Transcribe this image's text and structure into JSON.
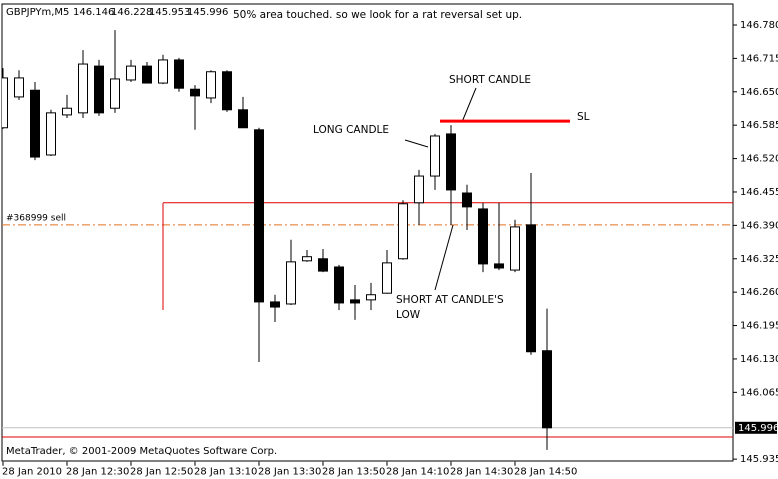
{
  "chart_data": {
    "type": "candlestick",
    "symbol": "GBPJPYm,M5",
    "categories": [
      "28 Jan 2010",
      null,
      null,
      null,
      "28 Jan 12:30",
      null,
      null,
      null,
      "28 Jan 12:50",
      null,
      null,
      null,
      "28 Jan 13:10",
      null,
      null,
      null,
      "28 Jan 13:30",
      null,
      null,
      null,
      "28 Jan 13:50",
      null,
      null,
      null,
      "28 Jan 14:10",
      null,
      null,
      null,
      "28 Jan 14:30",
      null,
      null,
      null,
      "28 Jan 14:50",
      null,
      null
    ],
    "open": [
      146.58,
      146.64,
      146.653,
      146.527,
      146.605,
      146.609,
      146.7,
      146.618,
      146.673,
      146.7,
      146.667,
      146.712,
      146.655,
      146.638,
      146.689,
      146.615,
      146.576,
      146.241,
      146.237,
      146.321,
      146.325,
      146.309,
      146.245,
      146.245,
      146.258,
      146.325,
      146.434,
      146.486,
      146.568,
      146.453,
      146.422,
      146.315,
      146.303,
      146.391,
      146.146
    ],
    "high": [
      146.696,
      146.692,
      146.669,
      146.615,
      146.644,
      146.731,
      146.712,
      146.77,
      146.712,
      146.708,
      146.722,
      146.716,
      146.663,
      146.692,
      146.692,
      146.64,
      146.58,
      146.255,
      146.362,
      146.342,
      146.344,
      146.313,
      146.274,
      146.278,
      146.342,
      146.439,
      146.498,
      146.568,
      146.585,
      146.469,
      146.434,
      146.434,
      146.401,
      146.492,
      146.228
    ],
    "low": [
      146.578,
      146.634,
      146.517,
      146.525,
      146.599,
      146.599,
      146.603,
      146.609,
      146.669,
      146.667,
      146.665,
      146.65,
      146.576,
      146.628,
      146.611,
      146.58,
      146.124,
      146.202,
      146.235,
      146.319,
      146.299,
      146.225,
      146.206,
      146.225,
      146.257,
      146.323,
      146.391,
      146.459,
      146.391,
      146.381,
      146.299,
      146.303,
      146.299,
      146.138,
      145.953
    ],
    "close": [
      146.677,
      146.677,
      146.523,
      146.609,
      146.618,
      146.704,
      146.609,
      146.675,
      146.7,
      146.667,
      146.712,
      146.657,
      146.642,
      146.689,
      146.615,
      146.58,
      146.241,
      146.231,
      146.319,
      146.329,
      146.301,
      146.239,
      146.239,
      146.255,
      146.317,
      146.432,
      146.486,
      146.564,
      146.459,
      146.426,
      146.315,
      146.307,
      146.387,
      146.144,
      145.996
    ],
    "up_color": "#ffffff",
    "down_color": "#000000",
    "ylim": [
      145.93,
      146.82
    ],
    "yticks": [
      {
        "value": 146.78,
        "label": "146.780"
      },
      146.715,
      {
        "value": 146.65,
        "label": "146.650"
      },
      146.585,
      {
        "value": 146.52,
        "label": "146.520"
      },
      146.455,
      {
        "value": 146.39,
        "label": "146.390"
      },
      146.325,
      {
        "value": 146.26,
        "label": "146.260"
      },
      146.195,
      {
        "value": 146.13,
        "label": "146.130"
      },
      146.065,
      145.935
    ],
    "hlines": [
      {
        "value": 146.434,
        "color": "#e00000"
      },
      {
        "value": 145.978,
        "color": "#e00000"
      }
    ],
    "order_level": {
      "label": "#368999 sell",
      "value": 146.391,
      "color": "#e07020"
    },
    "stop_loss": {
      "label": "SL",
      "value": 146.593,
      "color": "#ff0000"
    },
    "annotations": [
      "50% area touched. so we look for a rat reversal set up.",
      "SHORT CANDLE",
      "LONG CANDLE",
      "SHORT AT CANDLE'S",
      "LOW"
    ],
    "footer": "MetaTrader, © 2001-2009 MetaQuotes Software Corp."
  }
}
